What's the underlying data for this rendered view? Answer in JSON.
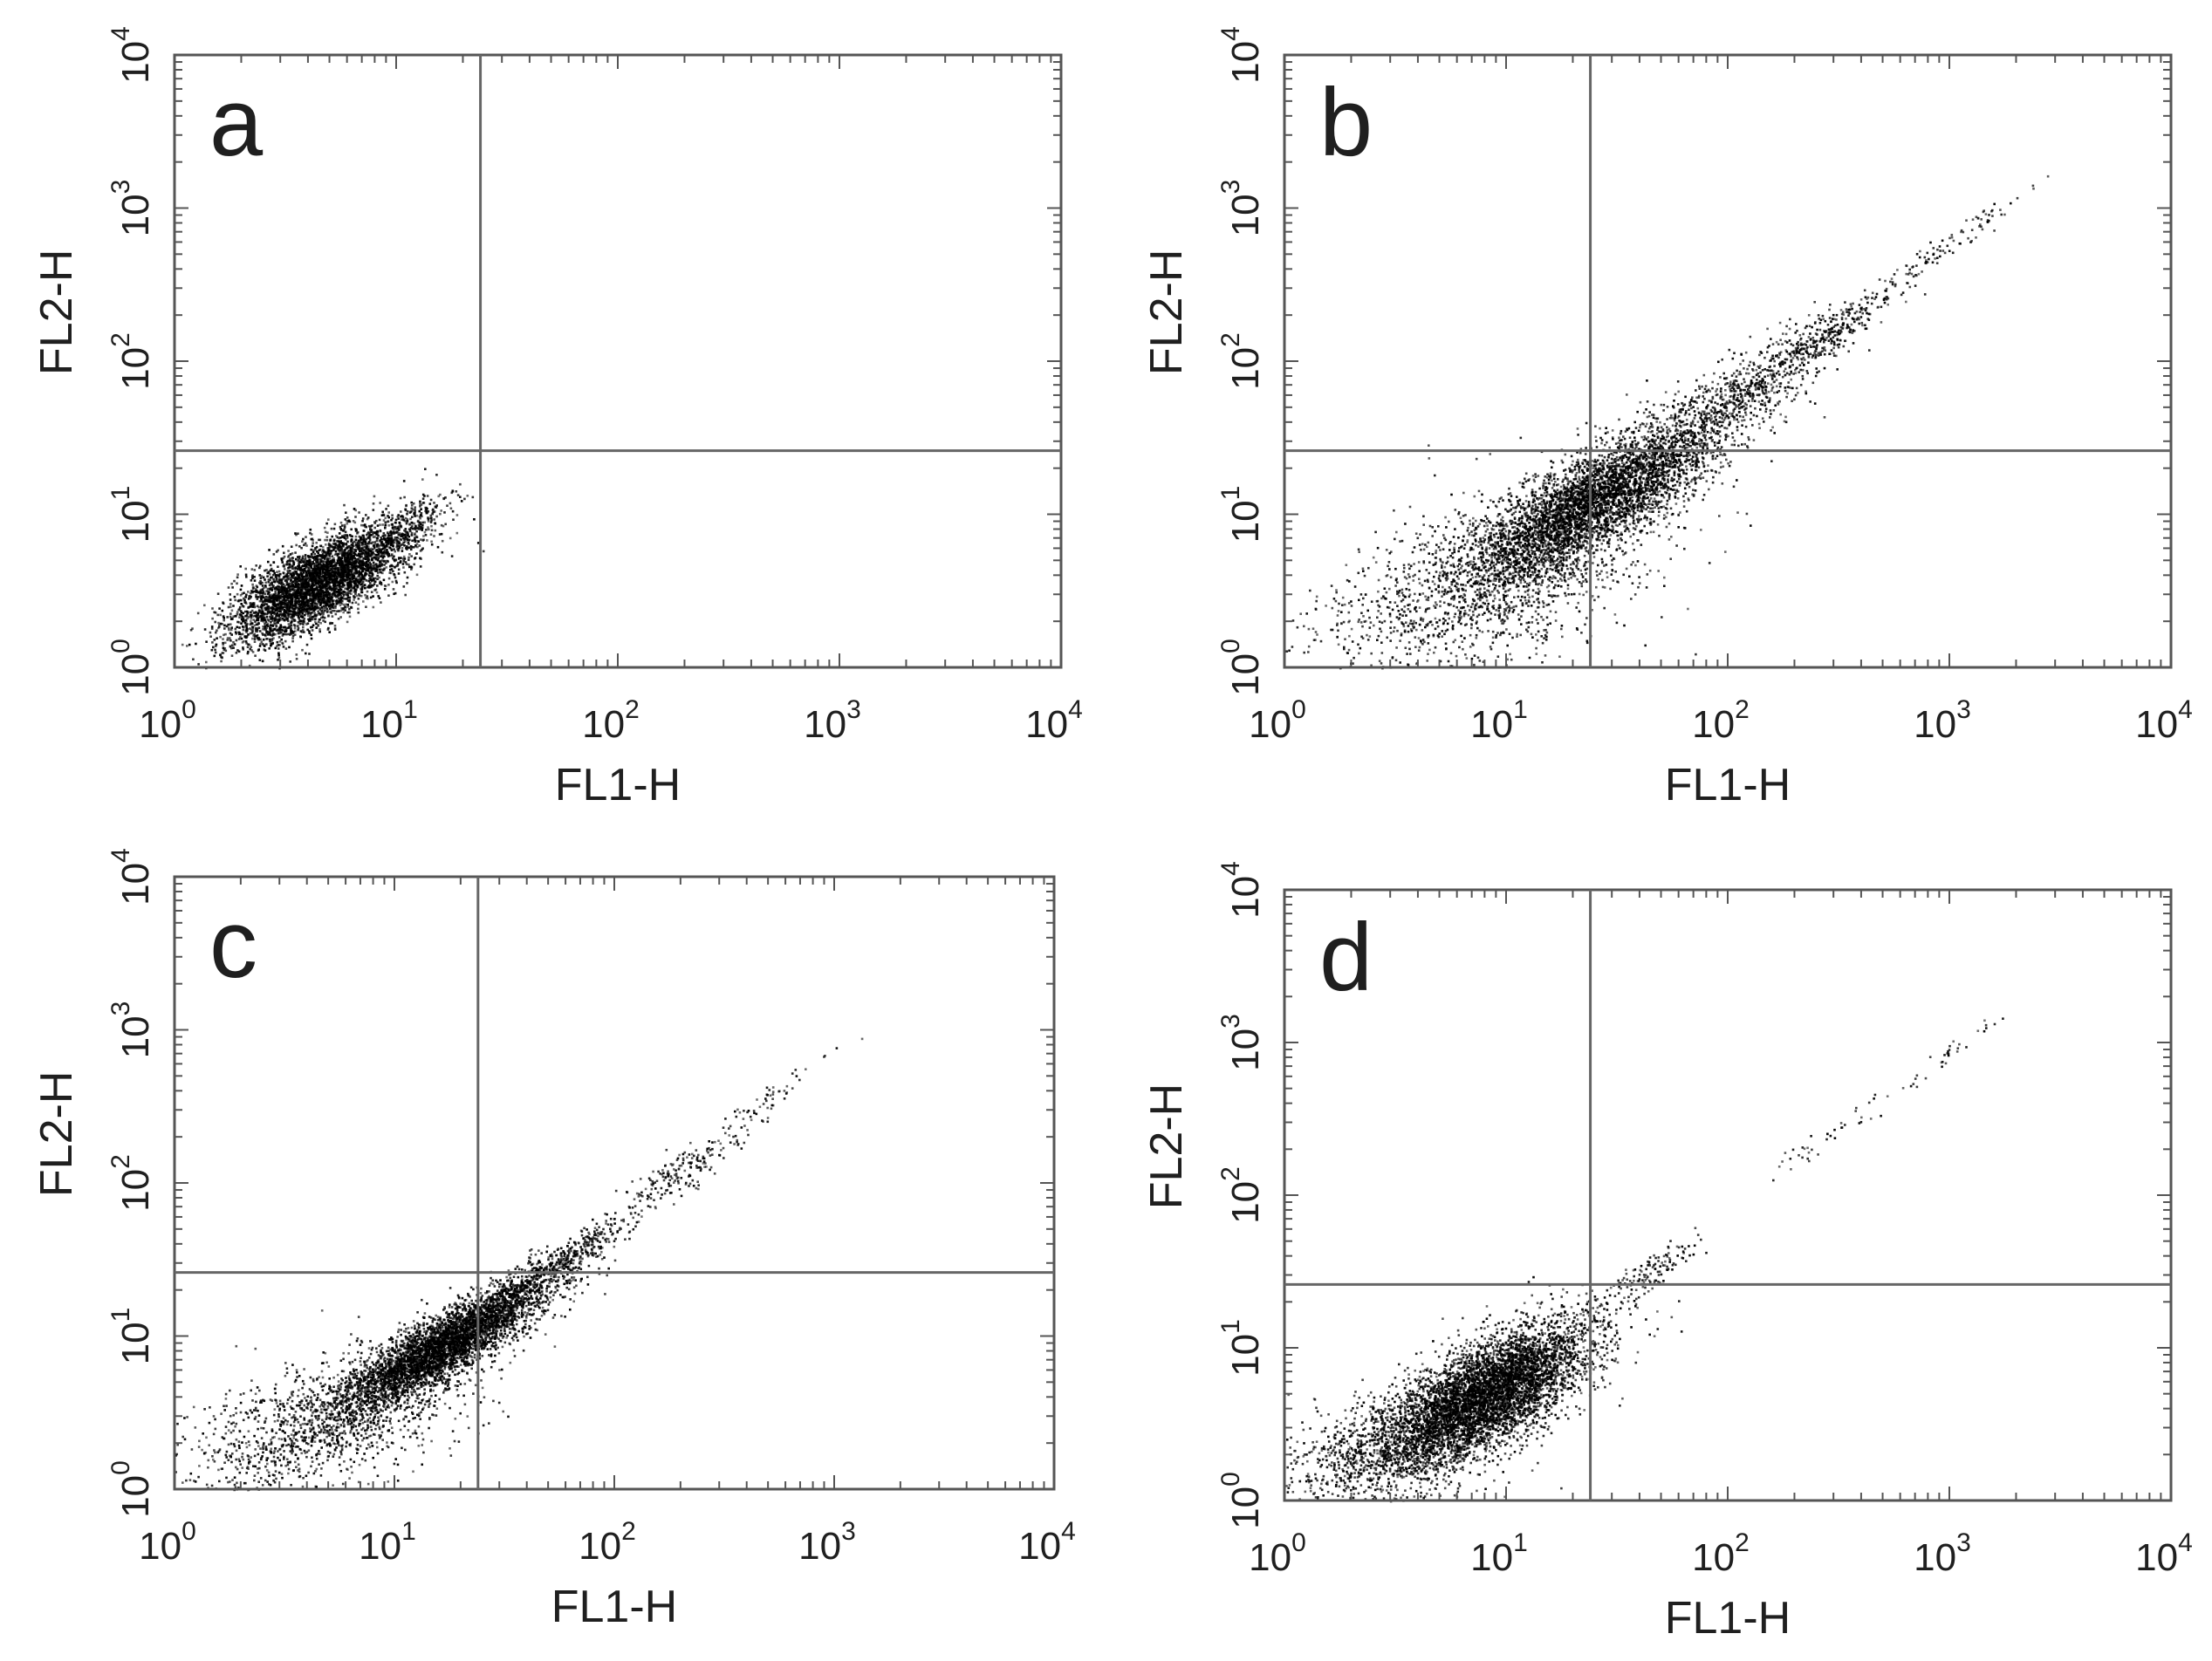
{
  "chart_data": [
    {
      "type": "scatter",
      "panel_label": "a",
      "xlabel": "FL1-H",
      "ylabel": "FL2-H",
      "xscale": "log",
      "yscale": "log",
      "xlim": [
        1,
        10000
      ],
      "ylim": [
        1,
        10000
      ],
      "x_ticks": [
        {
          "base": "10",
          "exp": "0"
        },
        {
          "base": "10",
          "exp": "1"
        },
        {
          "base": "10",
          "exp": "2"
        },
        {
          "base": "10",
          "exp": "3"
        },
        {
          "base": "10",
          "exp": "4"
        }
      ],
      "y_ticks": [
        {
          "base": "10",
          "exp": "0"
        },
        {
          "base": "10",
          "exp": "1"
        },
        {
          "base": "10",
          "exp": "2"
        },
        {
          "base": "10",
          "exp": "3"
        },
        {
          "base": "10",
          "exp": "4"
        }
      ],
      "quadrant_gate": {
        "x": 24,
        "y": 26
      },
      "populations": [
        {
          "count": 4200,
          "center_x": 4.4,
          "center_y": 3.6,
          "spread_x_decades": 0.2,
          "spread_y_decades": 0.19,
          "correlation": 0.72
        },
        {
          "count": 260,
          "center_x": 11,
          "center_y": 8,
          "spread_x_decades": 0.12,
          "spread_y_decades": 0.13,
          "correlation": 0.8
        }
      ]
    },
    {
      "type": "scatter",
      "panel_label": "b",
      "xlabel": "FL1-H",
      "ylabel": "FL2-H",
      "xscale": "log",
      "yscale": "log",
      "xlim": [
        1,
        10000
      ],
      "ylim": [
        1,
        10000
      ],
      "x_ticks": [
        {
          "base": "10",
          "exp": "0"
        },
        {
          "base": "10",
          "exp": "1"
        },
        {
          "base": "10",
          "exp": "2"
        },
        {
          "base": "10",
          "exp": "3"
        },
        {
          "base": "10",
          "exp": "4"
        }
      ],
      "y_ticks": [
        {
          "base": "10",
          "exp": "0"
        },
        {
          "base": "10",
          "exp": "1"
        },
        {
          "base": "10",
          "exp": "2"
        },
        {
          "base": "10",
          "exp": "3"
        },
        {
          "base": "10",
          "exp": "4"
        }
      ],
      "quadrant_gate": {
        "x": 24,
        "y": 26
      },
      "populations": [
        {
          "count": 4300,
          "center_x": 24,
          "center_y": 12,
          "spread_x_decades": 0.28,
          "spread_y_decades": 0.27,
          "correlation": 0.8
        },
        {
          "count": 1400,
          "center_x": 8,
          "center_y": 3.5,
          "spread_x_decades": 0.38,
          "spread_y_decades": 0.3,
          "correlation": 0.5
        },
        {
          "count": 700,
          "center_x": 110,
          "center_y": 60,
          "spread_x_decades": 0.22,
          "spread_y_decades": 0.24,
          "correlation": 0.85
        },
        {
          "count": 260,
          "center_x": 320,
          "center_y": 170,
          "spread_x_decades": 0.14,
          "spread_y_decades": 0.14,
          "correlation": 0.9
        },
        {
          "count": 90,
          "center_x": 1000,
          "center_y": 600,
          "spread_x_decades": 0.15,
          "spread_y_decades": 0.15,
          "correlation": 0.95
        }
      ]
    },
    {
      "type": "scatter",
      "panel_label": "c",
      "xlabel": "FL1-H",
      "ylabel": "FL2-H",
      "xscale": "log",
      "yscale": "log",
      "xlim": [
        1,
        10000
      ],
      "ylim": [
        1,
        10000
      ],
      "x_ticks": [
        {
          "base": "10",
          "exp": "0"
        },
        {
          "base": "10",
          "exp": "1"
        },
        {
          "base": "10",
          "exp": "2"
        },
        {
          "base": "10",
          "exp": "3"
        },
        {
          "base": "10",
          "exp": "4"
        }
      ],
      "y_ticks": [
        {
          "base": "10",
          "exp": "0"
        },
        {
          "base": "10",
          "exp": "1"
        },
        {
          "base": "10",
          "exp": "2"
        },
        {
          "base": "10",
          "exp": "3"
        },
        {
          "base": "10",
          "exp": "4"
        }
      ],
      "quadrant_gate": {
        "x": 24,
        "y": 26
      },
      "populations": [
        {
          "count": 4200,
          "center_x": 17,
          "center_y": 9,
          "spread_x_decades": 0.24,
          "spread_y_decades": 0.22,
          "correlation": 0.88
        },
        {
          "count": 1300,
          "center_x": 5,
          "center_y": 2.8,
          "spread_x_decades": 0.34,
          "spread_y_decades": 0.25,
          "correlation": 0.6
        },
        {
          "count": 420,
          "center_x": 55,
          "center_y": 30,
          "spread_x_decades": 0.15,
          "spread_y_decades": 0.15,
          "correlation": 0.9
        },
        {
          "count": 200,
          "center_x": 200,
          "center_y": 120,
          "spread_x_decades": 0.15,
          "spread_y_decades": 0.15,
          "correlation": 0.9
        },
        {
          "count": 45,
          "center_x": 550,
          "center_y": 400,
          "spread_x_decades": 0.15,
          "spread_y_decades": 0.15,
          "correlation": 0.95
        }
      ]
    },
    {
      "type": "scatter",
      "panel_label": "d",
      "xlabel": "FL1-H",
      "ylabel": "FL2-H",
      "xscale": "log",
      "yscale": "log",
      "xlim": [
        1,
        10000
      ],
      "ylim": [
        1,
        10000
      ],
      "x_ticks": [
        {
          "base": "10",
          "exp": "0"
        },
        {
          "base": "10",
          "exp": "1"
        },
        {
          "base": "10",
          "exp": "2"
        },
        {
          "base": "10",
          "exp": "3"
        },
        {
          "base": "10",
          "exp": "4"
        }
      ],
      "y_ticks": [
        {
          "base": "10",
          "exp": "0"
        },
        {
          "base": "10",
          "exp": "1"
        },
        {
          "base": "10",
          "exp": "2"
        },
        {
          "base": "10",
          "exp": "3"
        },
        {
          "base": "10",
          "exp": "4"
        }
      ],
      "quadrant_gate": {
        "x": 24,
        "y": 26
      },
      "populations": [
        {
          "count": 5200,
          "center_x": 8,
          "center_y": 5,
          "spread_x_decades": 0.24,
          "spread_y_decades": 0.24,
          "correlation": 0.7
        },
        {
          "count": 1000,
          "center_x": 3,
          "center_y": 2.2,
          "spread_x_decades": 0.28,
          "spread_y_decades": 0.2,
          "correlation": 0.4
        },
        {
          "count": 120,
          "center_x": 45,
          "center_y": 32,
          "spread_x_decades": 0.1,
          "spread_y_decades": 0.1,
          "correlation": 0.8
        },
        {
          "count": 40,
          "center_x": 300,
          "center_y": 250,
          "spread_x_decades": 0.18,
          "spread_y_decades": 0.18,
          "correlation": 0.95
        },
        {
          "count": 30,
          "center_x": 1000,
          "center_y": 900,
          "spread_x_decades": 0.12,
          "spread_y_decades": 0.12,
          "correlation": 0.95
        }
      ]
    }
  ]
}
